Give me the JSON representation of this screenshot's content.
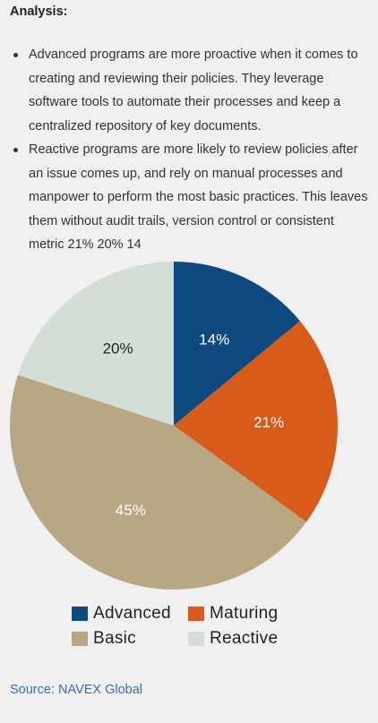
{
  "heading": "Analysis:",
  "bullets": [
    "Advanced programs are more proactive when it comes to creating and reviewing their policies. They leverage software tools to automate their processes and keep a centralized repository of key documents.",
    "Reactive programs are more likely to review policies after an issue comes up, and rely on manual processes and manpower to perform the most basic practices. This leaves them without audit trails, version control or consistent metric 21% 20% 14"
  ],
  "chart_data": {
    "type": "pie",
    "title": "",
    "start": "12 o'clock",
    "direction": "clockwise",
    "slices": [
      {
        "label": "Advanced",
        "value": 14,
        "display": "14%",
        "color": "#0e4a80",
        "label_color": "#ffffff"
      },
      {
        "label": "Maturing",
        "value": 21,
        "display": "21%",
        "color": "#d95b1a",
        "label_color": "#ffffff"
      },
      {
        "label": "Basic",
        "value": 45,
        "display": "45%",
        "color": "#b8a783",
        "label_color": "#ffffff"
      },
      {
        "label": "Reactive",
        "value": 20,
        "display": "20%",
        "color": "#d3dfd6",
        "label_color": "#222222"
      }
    ],
    "legend": {
      "placement": "bottom",
      "order": [
        "Advanced",
        "Maturing",
        "Basic",
        "Reactive"
      ]
    }
  },
  "source": "Source: NAVEX Global"
}
